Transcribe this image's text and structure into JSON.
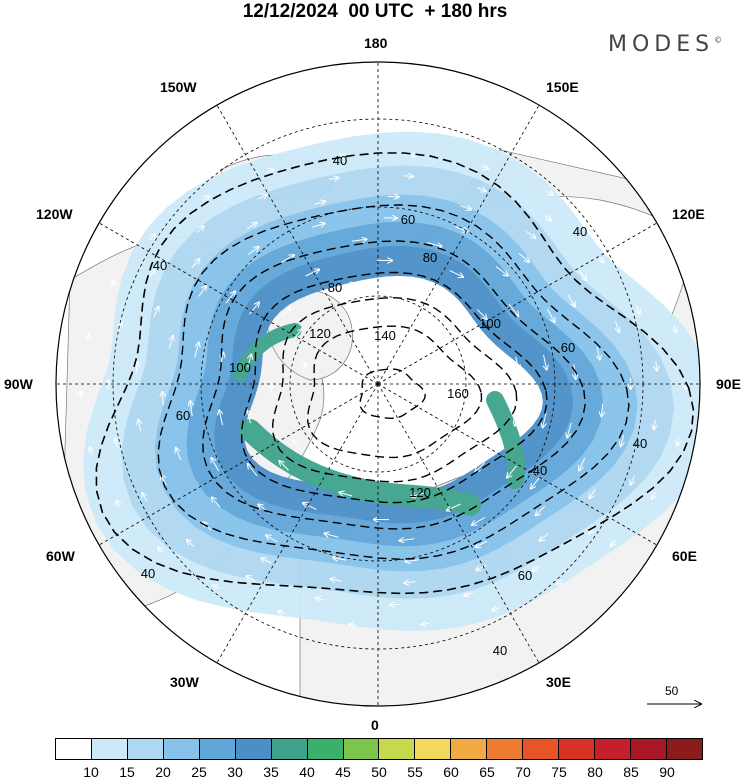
{
  "header": {
    "title": "12/12/2024  00 UTC  + 180 hrs",
    "brand": "MODES",
    "brand_mark": "©"
  },
  "map": {
    "projection": "polar-stereographic-north",
    "meridian_labels": [
      "180",
      "150E",
      "120E",
      "90E",
      "60E",
      "30E",
      "0",
      "30W",
      "60W",
      "90W",
      "120W",
      "150W"
    ],
    "contour_levels": [
      40,
      60,
      80,
      100,
      120,
      140,
      160
    ],
    "contour_label_samples": [
      "40",
      "40",
      "40",
      "40",
      "40",
      "40",
      "60",
      "60",
      "60",
      "80",
      "80",
      "100",
      "120",
      "120",
      "140",
      "160",
      "100",
      "60",
      "40"
    ],
    "fill_colors": {
      "land": "#f2f2f2",
      "band15": "#cde9f8",
      "band20": "#aed7f1",
      "band25": "#86c2ea",
      "band30": "#5fa6d9",
      "band35": "#4a8fc8",
      "band40": "#3fa38c",
      "band45": "#3bb06a"
    }
  },
  "colorbar": {
    "labels": [
      "10",
      "15",
      "20",
      "25",
      "30",
      "35",
      "40",
      "45",
      "50",
      "55",
      "60",
      "65",
      "70",
      "75",
      "80",
      "85",
      "90"
    ],
    "colors": [
      "#ffffff",
      "#cde9f8",
      "#aed7f1",
      "#86c2ea",
      "#5fa6d9",
      "#4a8fc8",
      "#3fa38c",
      "#3bb06a",
      "#7cc44c",
      "#c6d84b",
      "#f3d95b",
      "#f2aa45",
      "#ef7b32",
      "#e65428",
      "#d83226",
      "#c41f2b",
      "#a81726",
      "#8c1b1b"
    ]
  },
  "reference_vector": {
    "label": "50"
  }
}
